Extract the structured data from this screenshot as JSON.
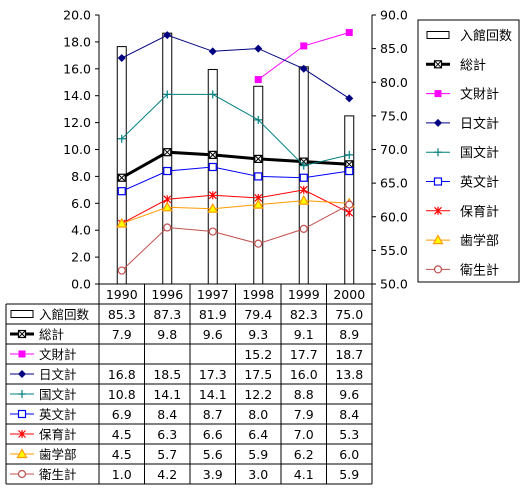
{
  "chart_data": {
    "type": "line",
    "categories": [
      "1990",
      "1996",
      "1997",
      "1998",
      "1999",
      "2000"
    ],
    "left_axis": {
      "range": [
        0,
        20
      ],
      "ticks": [
        "0.0",
        "2.0",
        "4.0",
        "6.0",
        "8.0",
        "10.0",
        "12.0",
        "14.0",
        "16.0",
        "18.0",
        "20.0"
      ]
    },
    "right_axis": {
      "range": [
        50,
        90
      ],
      "ticks": [
        "50.0",
        "55.0",
        "60.0",
        "65.0",
        "70.0",
        "75.0",
        "80.0",
        "85.0",
        "90.0"
      ]
    },
    "grid": false,
    "legend_position": "right",
    "series": [
      {
        "name": "入館回数",
        "type": "bar",
        "axis": "right",
        "color": "#000000",
        "marker": "none",
        "values": [
          85.3,
          87.3,
          81.9,
          79.4,
          82.3,
          75.0
        ],
        "display": [
          "85.3",
          "87.3",
          "81.9",
          "79.4",
          "82.3",
          "75.0"
        ]
      },
      {
        "name": "総計",
        "type": "line",
        "axis": "left",
        "color": "#000000",
        "marker": "square-x",
        "width": 3,
        "values": [
          7.9,
          9.8,
          9.6,
          9.3,
          9.1,
          8.9
        ],
        "display": [
          "7.9",
          "9.8",
          "9.6",
          "9.3",
          "9.1",
          "8.9"
        ]
      },
      {
        "name": "文財計",
        "type": "line",
        "axis": "left",
        "color": "#ff00ff",
        "marker": "square",
        "width": 1,
        "values": [
          null,
          null,
          null,
          15.2,
          17.7,
          18.7
        ],
        "display": [
          "",
          "",
          "",
          "15.2",
          "17.7",
          "18.7"
        ]
      },
      {
        "name": "日文計",
        "type": "line",
        "axis": "left",
        "color": "#000080",
        "marker": "diamond",
        "width": 1,
        "values": [
          16.8,
          18.5,
          17.3,
          17.5,
          16.0,
          13.8
        ],
        "display": [
          "16.8",
          "18.5",
          "17.3",
          "17.5",
          "16.0",
          "13.8"
        ]
      },
      {
        "name": "国文計",
        "type": "line",
        "axis": "left",
        "color": "#008080",
        "marker": "plus",
        "width": 1,
        "values": [
          10.8,
          14.1,
          14.1,
          12.2,
          8.8,
          9.6
        ],
        "display": [
          "10.8",
          "14.1",
          "14.1",
          "12.2",
          "8.8",
          "9.6"
        ]
      },
      {
        "name": "英文計",
        "type": "line",
        "axis": "left",
        "color": "#0000ff",
        "marker": "square-open",
        "width": 1,
        "values": [
          6.9,
          8.4,
          8.7,
          8.0,
          7.9,
          8.4
        ],
        "display": [
          "6.9",
          "8.4",
          "8.7",
          "8.0",
          "7.9",
          "8.4"
        ]
      },
      {
        "name": "保育計",
        "type": "line",
        "axis": "left",
        "color": "#ff0000",
        "marker": "star",
        "width": 1,
        "values": [
          4.5,
          6.3,
          6.6,
          6.4,
          7.0,
          5.3
        ],
        "display": [
          "4.5",
          "6.3",
          "6.6",
          "6.4",
          "7.0",
          "5.3"
        ]
      },
      {
        "name": "歯学部",
        "type": "line",
        "axis": "left",
        "color": "#ff9900",
        "marker": "triangle",
        "width": 1,
        "values": [
          4.5,
          5.7,
          5.6,
          5.9,
          6.2,
          6.0
        ],
        "display": [
          "4.5",
          "5.7",
          "5.6",
          "5.9",
          "6.2",
          "6.0"
        ]
      },
      {
        "name": "衛生計",
        "type": "line",
        "axis": "left",
        "color": "#c0504d",
        "marker": "circle-open",
        "width": 1,
        "values": [
          1.0,
          4.2,
          3.9,
          3.0,
          4.1,
          5.9
        ],
        "display": [
          "1.0",
          "4.2",
          "3.9",
          "3.0",
          "4.1",
          "5.9"
        ]
      }
    ]
  }
}
